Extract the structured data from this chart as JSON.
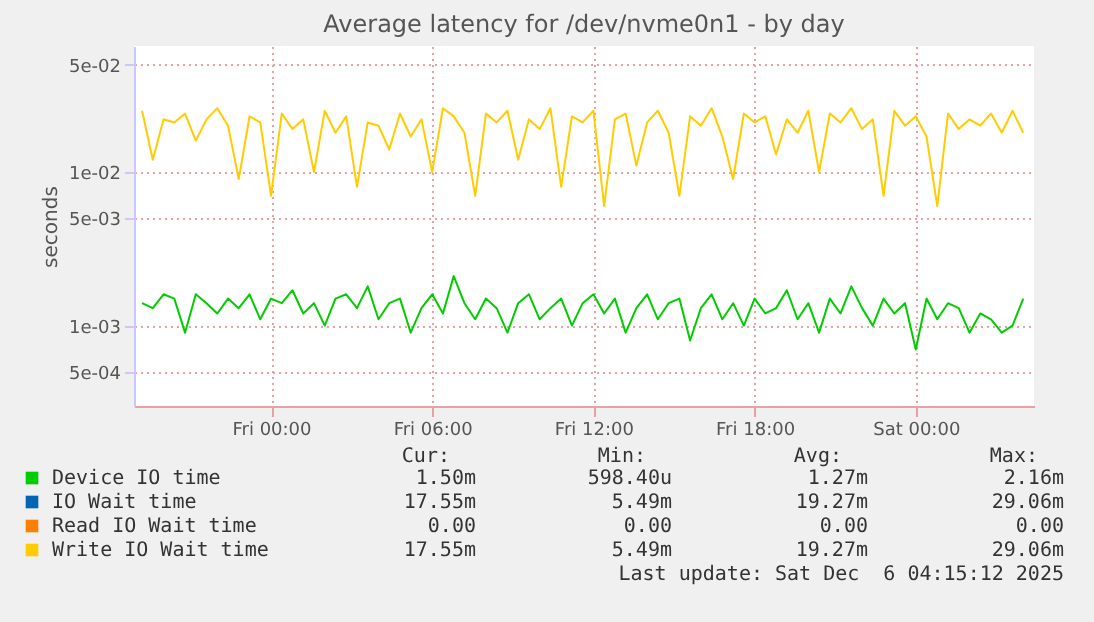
{
  "chart_data": {
    "type": "line",
    "title": "Average latency for /dev/nvme0n1 - by day",
    "ylabel": "seconds",
    "log": "y",
    "grid": true,
    "legend": "bottom",
    "marker": "none",
    "line_style": "solid",
    "x": [
      "2025-12-04T19:12",
      "2025-12-04T19:36",
      "2025-12-04T20:00",
      "2025-12-04T20:24",
      "2025-12-04T20:48",
      "2025-12-04T21:12",
      "2025-12-04T21:36",
      "2025-12-04T22:00",
      "2025-12-04T22:24",
      "2025-12-04T22:48",
      "2025-12-04T23:12",
      "2025-12-04T23:36",
      "2025-12-05T00:00",
      "2025-12-05T00:24",
      "2025-12-05T00:48",
      "2025-12-05T01:12",
      "2025-12-05T01:36",
      "2025-12-05T02:00",
      "2025-12-05T02:24",
      "2025-12-05T02:48",
      "2025-12-05T03:12",
      "2025-12-05T03:36",
      "2025-12-05T04:00",
      "2025-12-05T04:24",
      "2025-12-05T04:48",
      "2025-12-05T05:12",
      "2025-12-05T05:36",
      "2025-12-05T06:00",
      "2025-12-05T06:24",
      "2025-12-05T06:48",
      "2025-12-05T07:12",
      "2025-12-05T07:36",
      "2025-12-05T08:00",
      "2025-12-05T08:24",
      "2025-12-05T08:48",
      "2025-12-05T09:12",
      "2025-12-05T09:36",
      "2025-12-05T10:00",
      "2025-12-05T10:24",
      "2025-12-05T10:48",
      "2025-12-05T11:12",
      "2025-12-05T11:36",
      "2025-12-05T12:00",
      "2025-12-05T12:24",
      "2025-12-05T12:48",
      "2025-12-05T13:12",
      "2025-12-05T13:36",
      "2025-12-05T14:00",
      "2025-12-05T14:24",
      "2025-12-05T14:48",
      "2025-12-05T15:12",
      "2025-12-05T15:36",
      "2025-12-05T16:00",
      "2025-12-05T16:24",
      "2025-12-05T16:48",
      "2025-12-05T17:12",
      "2025-12-05T17:36",
      "2025-12-05T18:00",
      "2025-12-05T18:24",
      "2025-12-05T18:48",
      "2025-12-05T19:12",
      "2025-12-05T19:36",
      "2025-12-05T20:00",
      "2025-12-05T20:24",
      "2025-12-05T20:48",
      "2025-12-05T21:12",
      "2025-12-05T21:36",
      "2025-12-05T22:00",
      "2025-12-05T22:24",
      "2025-12-05T22:48",
      "2025-12-05T23:12",
      "2025-12-05T23:36",
      "2025-12-06T00:00",
      "2025-12-06T00:24",
      "2025-12-06T00:48",
      "2025-12-06T01:12",
      "2025-12-06T01:36",
      "2025-12-06T02:00",
      "2025-12-06T02:24",
      "2025-12-06T02:48",
      "2025-12-06T03:12",
      "2025-12-06T03:36",
      "2025-12-06T04:00"
    ],
    "xlim": [
      "2025-12-04T18:54",
      "2025-12-06T04:24"
    ],
    "xticks": [
      {
        "value": "2025-12-05T00:00",
        "label": "Fri 00:00"
      },
      {
        "value": "2025-12-05T06:00",
        "label": "Fri 06:00"
      },
      {
        "value": "2025-12-05T12:00",
        "label": "Fri 12:00"
      },
      {
        "value": "2025-12-05T18:00",
        "label": "Fri 18:00"
      },
      {
        "value": "2025-12-06T00:00",
        "label": "Sat 00:00"
      }
    ],
    "ylim": [
      0.0003,
      0.066
    ],
    "yticks": [
      {
        "value": 0.0005,
        "label": "5e-04"
      },
      {
        "value": 0.001,
        "label": "1e-03"
      },
      {
        "value": 0.005,
        "label": "5e-03"
      },
      {
        "value": 0.01,
        "label": "1e-02"
      },
      {
        "value": 0.05,
        "label": "5e-02"
      }
    ],
    "series": [
      {
        "name": "Device IO time",
        "color": "#00cc00",
        "values": [
          0.0014,
          0.0013,
          0.0016,
          0.0015,
          0.0009,
          0.0016,
          0.0014,
          0.0012,
          0.0015,
          0.0013,
          0.0016,
          0.0011,
          0.0015,
          0.0014,
          0.0017,
          0.0012,
          0.0014,
          0.001,
          0.0015,
          0.0016,
          0.0013,
          0.0018,
          0.0011,
          0.0014,
          0.0015,
          0.0009,
          0.0013,
          0.0016,
          0.0012,
          0.0021,
          0.0014,
          0.0011,
          0.0015,
          0.0013,
          0.0009,
          0.0014,
          0.0016,
          0.0011,
          0.0013,
          0.0015,
          0.001,
          0.0014,
          0.0016,
          0.0012,
          0.0015,
          0.0009,
          0.0013,
          0.0016,
          0.0011,
          0.0014,
          0.0015,
          0.0008,
          0.0013,
          0.0016,
          0.0011,
          0.0014,
          0.001,
          0.0015,
          0.0012,
          0.0013,
          0.0017,
          0.0011,
          0.0014,
          0.0009,
          0.0015,
          0.0012,
          0.0018,
          0.0013,
          0.001,
          0.0015,
          0.0012,
          0.0014,
          0.0007,
          0.0015,
          0.0011,
          0.0014,
          0.0013,
          0.0009,
          0.0012,
          0.0011,
          0.0009,
          0.001,
          0.0015
        ]
      },
      {
        "name": "IO Wait time",
        "color": "#0066b3",
        "values": [
          null,
          null,
          null,
          null,
          null,
          null,
          null,
          null,
          null,
          null,
          null,
          null,
          null,
          null,
          null,
          null,
          null,
          null,
          null,
          null,
          null,
          null,
          null,
          null,
          null,
          null,
          null,
          null,
          null,
          null,
          null,
          null,
          null,
          null,
          null,
          null,
          null,
          null,
          null,
          null,
          null,
          null,
          null,
          null,
          null,
          null,
          null,
          null,
          null,
          null,
          null,
          null,
          null,
          null,
          null,
          null,
          null,
          null,
          null,
          null,
          null,
          null,
          null,
          null,
          null,
          null,
          null,
          null,
          null,
          null,
          null,
          null,
          null,
          null,
          null,
          null,
          null,
          null,
          null,
          null,
          null,
          null,
          null
        ]
      },
      {
        "name": "Read IO Wait time",
        "color": "#ff8000",
        "values": [
          null,
          null,
          null,
          null,
          null,
          null,
          null,
          null,
          null,
          null,
          null,
          null,
          null,
          null,
          null,
          null,
          null,
          null,
          null,
          null,
          null,
          null,
          null,
          null,
          null,
          null,
          null,
          null,
          null,
          null,
          null,
          null,
          null,
          null,
          null,
          null,
          null,
          null,
          null,
          null,
          null,
          null,
          null,
          null,
          null,
          null,
          null,
          null,
          null,
          null,
          null,
          null,
          null,
          null,
          null,
          null,
          null,
          null,
          null,
          null,
          null,
          null,
          null,
          null,
          null,
          null,
          null,
          null,
          null,
          null,
          null,
          null,
          null,
          null,
          null,
          null,
          null,
          null,
          null,
          null,
          null,
          null,
          null
        ]
      },
      {
        "name": "Write IO Wait time",
        "color": "#ffcc00",
        "values": [
          0.025,
          0.012,
          0.022,
          0.021,
          0.024,
          0.016,
          0.022,
          0.026,
          0.02,
          0.009,
          0.023,
          0.021,
          0.007,
          0.024,
          0.019,
          0.022,
          0.01,
          0.025,
          0.018,
          0.023,
          0.008,
          0.021,
          0.02,
          0.014,
          0.024,
          0.017,
          0.022,
          0.01,
          0.026,
          0.023,
          0.018,
          0.007,
          0.024,
          0.021,
          0.025,
          0.012,
          0.022,
          0.019,
          0.026,
          0.008,
          0.023,
          0.021,
          0.025,
          0.006,
          0.022,
          0.024,
          0.011,
          0.021,
          0.025,
          0.018,
          0.007,
          0.023,
          0.02,
          0.026,
          0.017,
          0.009,
          0.024,
          0.021,
          0.023,
          0.013,
          0.022,
          0.018,
          0.025,
          0.01,
          0.024,
          0.021,
          0.026,
          0.019,
          0.022,
          0.007,
          0.025,
          0.02,
          0.023,
          0.017,
          0.006,
          0.024,
          0.019,
          0.022,
          0.02,
          0.024,
          0.018,
          0.025,
          0.018
        ]
      }
    ],
    "annotations": [
      "Cur:",
      "Min:",
      "Avg:",
      "Max:",
      "1.50m",
      "598.40u",
      "1.27m",
      "2.16m",
      "17.55m",
      "5.49m",
      "19.27m",
      "29.06m",
      "0.00",
      "0.00",
      "0.00",
      "0.00",
      "17.55m",
      "5.49m",
      "19.27m",
      "29.06m",
      "Last update: Sat Dec  6 04:15:12 2025"
    ]
  }
}
